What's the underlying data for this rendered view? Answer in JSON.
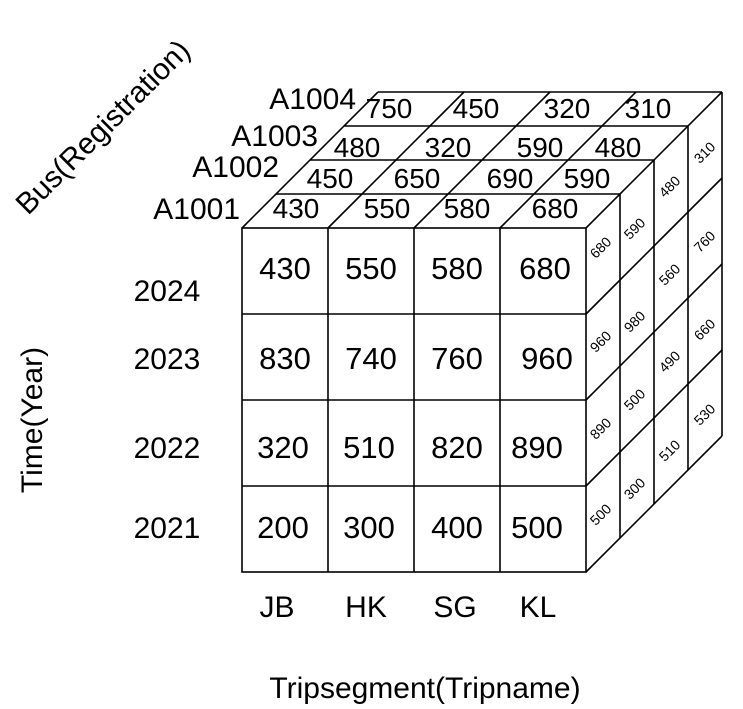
{
  "axes": {
    "bus": "Bus(Registration)",
    "time": "Time(Year)",
    "trip": "Tripsegment(Tripname)"
  },
  "years": [
    "2024",
    "2023",
    "2022",
    "2021"
  ],
  "trips": [
    "JB",
    "HK",
    "SG",
    "KL"
  ],
  "buses": [
    "A1001",
    "A1002",
    "A1003",
    "A1004"
  ],
  "front_grid": [
    [
      "430",
      "550",
      "580",
      "680"
    ],
    [
      "830",
      "740",
      "760",
      "960"
    ],
    [
      "320",
      "510",
      "820",
      "890"
    ],
    [
      "200",
      "300",
      "400",
      "500"
    ]
  ],
  "top_rows": [
    [
      "430",
      "550",
      "580",
      "680"
    ],
    [
      "450",
      "650",
      "690",
      "590"
    ],
    [
      "480",
      "320",
      "590",
      "480"
    ],
    [
      "750",
      "450",
      "320",
      "310"
    ]
  ],
  "side_rows": [
    [
      "680",
      "960",
      "890",
      "500"
    ],
    [
      "590",
      "980",
      "500",
      "300"
    ],
    [
      "480",
      "560",
      "490",
      "510"
    ],
    [
      "310",
      "760",
      "660",
      "530"
    ]
  ]
}
